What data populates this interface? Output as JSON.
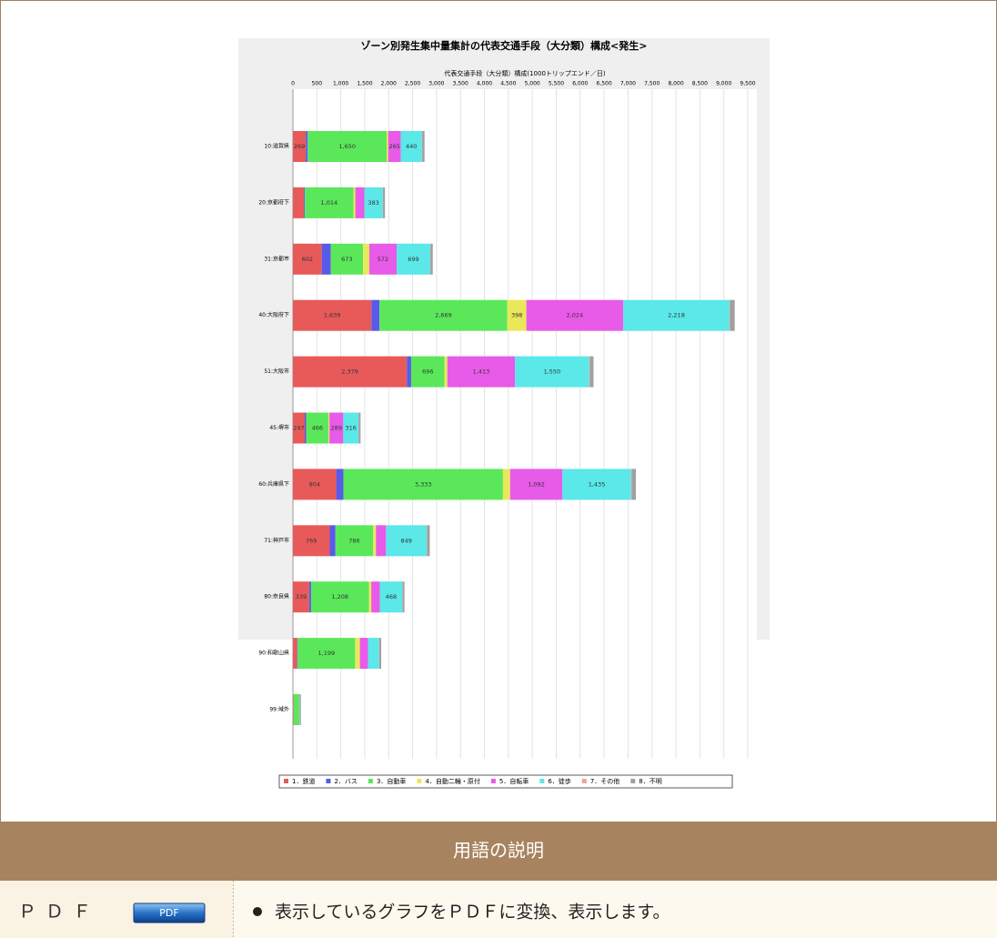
{
  "chart_data": {
    "type": "stacked-barh",
    "title": "ゾーン別発生集中量集計の代表交通手段（大分類）構成<発生>",
    "x_label": "代表交通手段（大分類）構成(1000トリップエンド／日)",
    "categories": [
      "10:滋賀県",
      "20:京都府下",
      "31:京都市",
      "40:大阪府下",
      "51:大阪市",
      "45:堺市",
      "60:兵庫県下",
      "71:神戸市",
      "80:奈良県",
      "90:和歌山県",
      "99:域外"
    ],
    "xlim": [
      0,
      9500
    ],
    "xticks": [
      0,
      500,
      {
        "value": 1000,
        "label": "1,000"
      },
      {
        "value": 1500,
        "label": "1,500"
      },
      {
        "value": 2000,
        "label": "2,000"
      },
      {
        "value": 2500,
        "label": "2,500"
      },
      {
        "value": 3000,
        "label": "3,000"
      },
      {
        "value": 3500,
        "label": "3,500"
      },
      {
        "value": 4000,
        "label": "4,000"
      },
      {
        "value": 4500,
        "label": "4,500"
      },
      {
        "value": 5000,
        "label": "5,000"
      },
      {
        "value": 5500,
        "label": "5,500"
      },
      {
        "value": 6000,
        "label": "6,000"
      },
      {
        "value": 6500,
        "label": "6,500"
      },
      {
        "value": 7000,
        "label": "7,000"
      },
      {
        "value": 7500,
        "label": "7,500"
      },
      {
        "value": 8000,
        "label": "8,000"
      },
      {
        "value": 8500,
        "label": "8,500"
      },
      {
        "value": 9000,
        "label": "9,000"
      },
      {
        "value": 9500,
        "label": "9,500"
      }
    ],
    "grid": true,
    "legend": "bottom",
    "series": [
      {
        "name": "1．鉄道",
        "color": "#e85a5a",
        "values": [
          269,
          230,
          602,
          1639,
          2379,
          247,
          904,
          769,
          339,
          90,
          10
        ],
        "value_labels": [
          "269",
          null,
          "602",
          "1,639",
          "2,379",
          "247",
          "904",
          "769",
          "339",
          null,
          null
        ]
      },
      {
        "name": "2．バス",
        "color": "#5a5ae8",
        "values": [
          40,
          20,
          190,
          170,
          90,
          30,
          150,
          120,
          40,
          10,
          5
        ],
        "value_labels": [
          null,
          null,
          null,
          null,
          null,
          null,
          null,
          null,
          null,
          null,
          null
        ]
      },
      {
        "name": "3．自動車",
        "color": "#5ae85a",
        "values": [
          1650,
          1014,
          673,
          2669,
          696,
          466,
          3333,
          786,
          1208,
          1199,
          120
        ],
        "value_labels": [
          "1,650",
          "1,014",
          "673",
          "2,669",
          "696",
          "466",
          "3,333",
          "786",
          "1,208",
          "1,199",
          null
        ]
      },
      {
        "name": "4．自動二輪・原付",
        "color": "#e8e85a",
        "values": [
          30,
          40,
          130,
          398,
          60,
          20,
          150,
          60,
          50,
          100,
          5
        ],
        "value_labels": [
          null,
          null,
          null,
          "398",
          null,
          null,
          null,
          null,
          null,
          null,
          null
        ]
      },
      {
        "name": "5．自転車",
        "color": "#e85ae8",
        "values": [
          265,
          190,
          572,
          2024,
          1413,
          289,
          1092,
          210,
          180,
          170,
          10
        ],
        "value_labels": [
          "265",
          null,
          "572",
          "2,024",
          "1,413",
          "289",
          "1,092",
          null,
          null,
          null,
          null
        ]
      },
      {
        "name": "6．徒歩",
        "color": "#5ae8e8",
        "values": [
          440,
          383,
          699,
          2218,
          1550,
          316,
          1435,
          849,
          468,
          230,
          10
        ],
        "value_labels": [
          "440",
          "383",
          "699",
          "2,218",
          "1,550",
          "316",
          "1,435",
          "849",
          "468",
          null,
          null
        ]
      },
      {
        "name": "7．その他",
        "color": "#f0a0a0",
        "values": [
          5,
          5,
          5,
          10,
          10,
          5,
          10,
          5,
          5,
          5,
          1
        ],
        "value_labels": [
          null,
          null,
          null,
          null,
          null,
          null,
          null,
          null,
          null,
          null,
          null
        ]
      },
      {
        "name": "8．不明",
        "color": "#a0a0a0",
        "values": [
          50,
          40,
          50,
          100,
          80,
          40,
          90,
          60,
          40,
          40,
          10
        ],
        "value_labels": [
          null,
          null,
          null,
          null,
          null,
          null,
          null,
          null,
          null,
          null,
          null
        ]
      }
    ]
  },
  "glossary": {
    "title": "用語の説明",
    "rows": [
      {
        "term": "ＰＤＦ",
        "button": "PDF",
        "description": "表示しているグラフをＰＤＦに変換、表示します。"
      }
    ]
  }
}
